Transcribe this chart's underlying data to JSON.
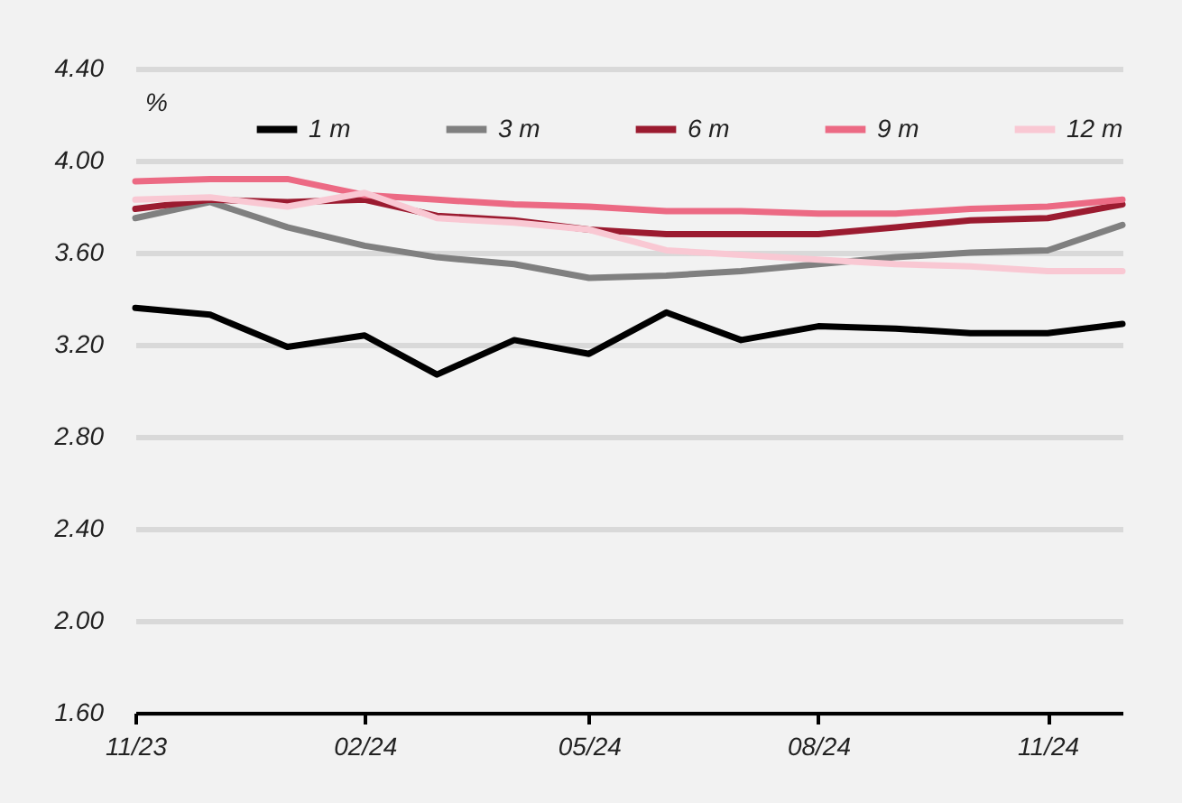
{
  "chart_data": {
    "type": "line",
    "ylabel": "%",
    "x": [
      "2023-11",
      "2023-12",
      "2024-01",
      "2024-02",
      "2024-03",
      "2024-04",
      "2024-05",
      "2024-06",
      "2024-07",
      "2024-08",
      "2024-09",
      "2024-10",
      "2024-11",
      "2024-12"
    ],
    "series": [
      {
        "name": "1 m",
        "color": "#000000",
        "values": [
          3.36,
          3.33,
          3.19,
          3.24,
          3.07,
          3.22,
          3.16,
          3.34,
          3.22,
          3.28,
          3.27,
          3.25,
          3.25,
          3.29
        ]
      },
      {
        "name": "3 m",
        "color": "#808080",
        "values": [
          3.75,
          3.82,
          3.71,
          3.63,
          3.58,
          3.55,
          3.49,
          3.5,
          3.52,
          3.55,
          3.58,
          3.6,
          3.61,
          3.72
        ]
      },
      {
        "name": "6 m",
        "color": "#9b1b30",
        "values": [
          3.79,
          3.83,
          3.82,
          3.83,
          3.76,
          3.74,
          3.7,
          3.68,
          3.68,
          3.68,
          3.71,
          3.74,
          3.75,
          3.81
        ]
      },
      {
        "name": "9 m",
        "color": "#ec6a84",
        "values": [
          3.91,
          3.92,
          3.92,
          3.85,
          3.83,
          3.81,
          3.8,
          3.78,
          3.78,
          3.77,
          3.77,
          3.79,
          3.8,
          3.83
        ]
      },
      {
        "name": "12 m",
        "color": "#f9c8d3",
        "values": [
          3.83,
          3.84,
          3.8,
          3.86,
          3.75,
          3.73,
          3.7,
          3.61,
          3.59,
          3.57,
          3.55,
          3.54,
          3.52,
          3.52
        ]
      }
    ],
    "xlim": [
      "2023-11",
      "2024-12"
    ],
    "xticks": [
      {
        "value": "2023-11",
        "label": "11/23"
      },
      {
        "value": "2024-02",
        "label": "02/24"
      },
      {
        "value": "2024-05",
        "label": "05/24"
      },
      {
        "value": "2024-08",
        "label": "08/24"
      },
      {
        "value": "2024-11",
        "label": "11/24"
      }
    ],
    "ylim": [
      1.6,
      4.4
    ],
    "yticks": [
      {
        "value": 1.6,
        "label": "1.60"
      },
      {
        "value": 2.0,
        "label": "2.00"
      },
      {
        "value": 2.4,
        "label": "2.40"
      },
      {
        "value": 2.8,
        "label": "2.80"
      },
      {
        "value": 3.2,
        "label": "3.20"
      },
      {
        "value": 3.6,
        "label": "3.60"
      },
      {
        "value": 4.0,
        "label": "4.00"
      },
      {
        "value": 4.4,
        "label": "4.40"
      }
    ],
    "grid": "y",
    "legend": "top",
    "line_style": "solid"
  }
}
